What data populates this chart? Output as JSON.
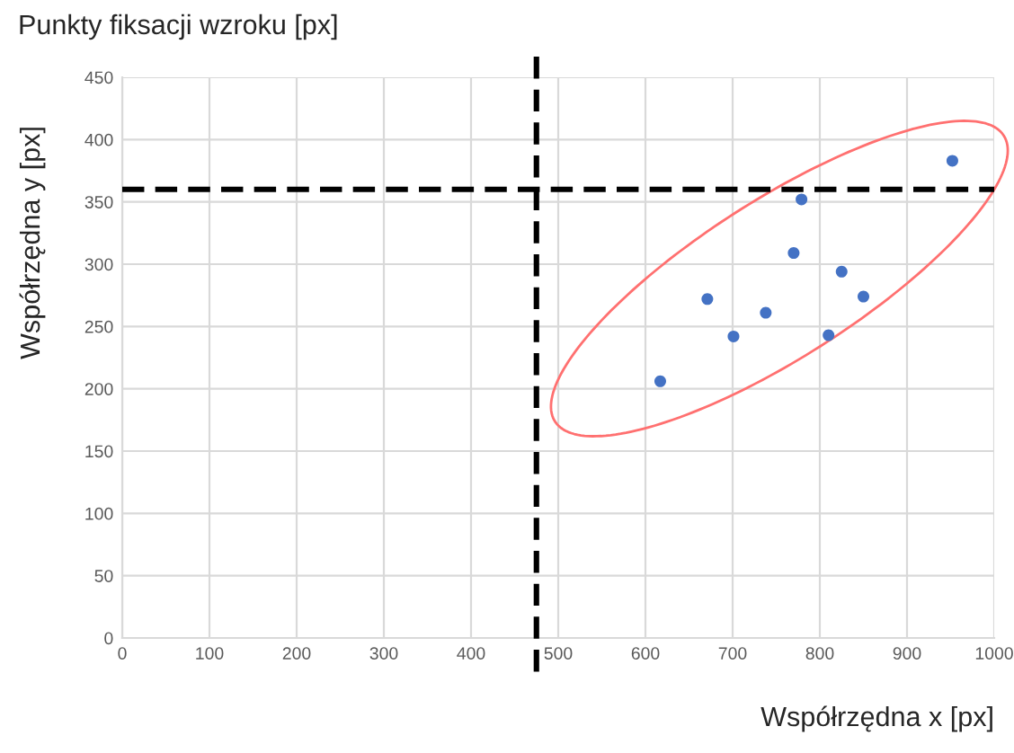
{
  "chart_data": {
    "type": "scatter",
    "title": "Punkty fiksacji wzroku [px]",
    "xlabel": "Współrzędna x [px]",
    "ylabel": "Współrzędna y [px]",
    "x": [
      617,
      671,
      701,
      738,
      770,
      779,
      825,
      810,
      850,
      952
    ],
    "series": [
      {
        "color": "#4472c4",
        "values": [
          206,
          272,
          242,
          261,
          309,
          352,
          294,
          243,
          274,
          383
        ]
      }
    ],
    "xlim": [
      0,
      1000
    ],
    "xticks": [
      0,
      100,
      200,
      300,
      400,
      500,
      600,
      700,
      800,
      900,
      1000
    ],
    "ylim": [
      0,
      450
    ],
    "yticks": [
      0,
      50,
      100,
      150,
      200,
      250,
      300,
      350,
      400,
      450
    ],
    "grid": true,
    "marker": "circle",
    "ref_lines": [
      {
        "axis": "x",
        "value": 475,
        "color": "#000000",
        "line_style": "dashed"
      },
      {
        "axis": "y",
        "value": 360,
        "color": "#000000",
        "line_style": "dashed"
      }
    ]
  }
}
